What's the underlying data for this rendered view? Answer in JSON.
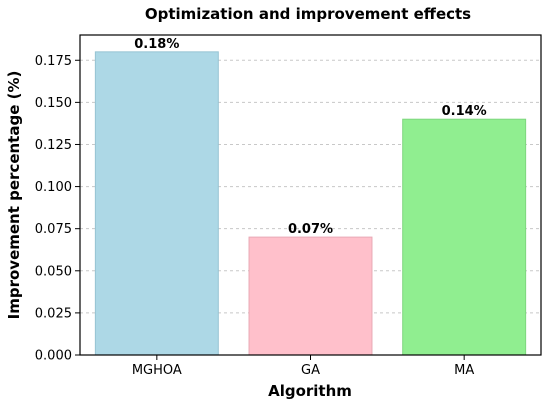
{
  "chart_data": {
    "type": "bar",
    "title": "Optimization and improvement effects",
    "xlabel": "Algorithm",
    "ylabel": "Improvement percentage (%)",
    "categories": [
      "MGHOA",
      "GA",
      "MA"
    ],
    "values": [
      0.18,
      0.07,
      0.14
    ],
    "data_labels": [
      "0.18%",
      "0.07%",
      "0.14%"
    ],
    "colors": [
      "#add8e6",
      "#ffc0cb",
      "#90ee90"
    ],
    "edge_colors": [
      "#96c3d3",
      "#e8a9b5",
      "#7ed67e"
    ],
    "ylim": [
      0,
      0.19
    ],
    "yticks": [
      0.0,
      0.025,
      0.05,
      0.075,
      0.1,
      0.125,
      0.15,
      0.175
    ],
    "ytick_labels": [
      "0.000",
      "0.025",
      "0.050",
      "0.075",
      "0.100",
      "0.125",
      "0.150",
      "0.175"
    ],
    "grid": true
  }
}
